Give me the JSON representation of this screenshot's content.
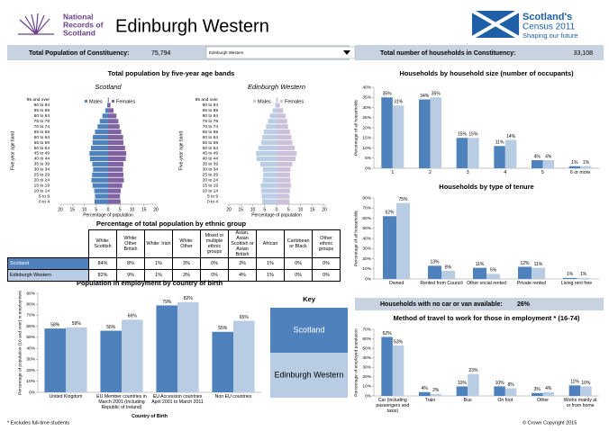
{
  "header": {
    "logo": [
      "National",
      "Records of",
      "Scotland"
    ],
    "title": "Edinburgh Western",
    "census": [
      "Scotland's",
      "Census 2011"
    ],
    "tagline": "Shaping our future"
  },
  "stats": {
    "population_label": "Total Population of Constituency:",
    "population": "75,794",
    "selector": "Edinburgh Western",
    "households_label": "Total number of households in Constituency:",
    "households": "33,108"
  },
  "ethnic_table": {
    "title": "Percentage of total population by ethnic group",
    "columns": [
      "White: Scottish",
      "White: Other British",
      "White: Irish",
      "White: Other",
      "Mixed or multiple ethnic groups",
      "Asian, Asian Scottish or Asian British",
      "African",
      "Caribbean or Black",
      "Other ethnic groups"
    ],
    "rows": [
      [
        "Scotland",
        "84%",
        "8%",
        "1%",
        "3%",
        "0%",
        "3%",
        "1%",
        "0%",
        "0%"
      ],
      [
        "Edinburgh Western",
        "82%",
        "9%",
        "1%",
        "3%",
        "0%",
        "4%",
        "1%",
        "0%",
        "0%"
      ]
    ]
  },
  "key": {
    "title": "Key",
    "items": [
      {
        "name": "Scotland",
        "color": "#4f81bd"
      },
      {
        "name": "Edinburgh Western",
        "color": "#b8cce4"
      }
    ]
  },
  "no_car": {
    "label": "Households with no car or van available:",
    "value": "26%"
  },
  "footer": {
    "note": "* Excludes full-time students",
    "copyright": "© Crown Copyright 2015"
  },
  "chart_data": [
    {
      "type": "pyramid",
      "title": "Total population by five-year age bands",
      "categories": [
        "95 and over",
        "90 to 94",
        "85 to 89",
        "80 to 84",
        "75 to 79",
        "70 to 74",
        "65 to 69",
        "60 to 64",
        "55 to 59",
        "50 to 54",
        "45 to 49",
        "40 to 44",
        "35 to 39",
        "30 to 34",
        "25 to 29",
        "20 to 24",
        "15 to 19",
        "10 to 14",
        "5 to 9",
        "0 to 4"
      ],
      "xlim": [
        0,
        20
      ],
      "xticks": [
        0,
        5,
        10,
        15,
        20
      ],
      "xlabel": "Percentage of population",
      "ylabel": "Five-year age band",
      "panels": [
        {
          "subtitle": "Scotland",
          "series": [
            {
              "name": "Males",
              "color": "#4f81bd",
              "values": [
                0.1,
                0.4,
                1.2,
                2.4,
                3.5,
                4.4,
                5.5,
                6.4,
                6.5,
                7.2,
                7.8,
                7.6,
                6.6,
                6.3,
                6.7,
                7.0,
                6.5,
                5.8,
                5.5,
                5.7
              ]
            },
            {
              "name": "Females",
              "color": "#8064a2",
              "values": [
                0.3,
                1.0,
                2.3,
                3.5,
                4.3,
                4.8,
                5.5,
                6.3,
                6.4,
                7.1,
                7.6,
                7.4,
                6.4,
                6.2,
                6.4,
                6.6,
                5.9,
                5.3,
                5.0,
                5.2
              ]
            }
          ]
        },
        {
          "subtitle": "Edinburgh Western",
          "series": [
            {
              "name": "Males",
              "color": "#b9cde5",
              "values": [
                0.2,
                0.6,
                1.6,
                2.8,
                3.6,
                4.4,
                5.4,
                6.0,
                6.4,
                7.6,
                8.6,
                8.4,
                6.8,
                5.8,
                5.6,
                5.8,
                6.6,
                6.4,
                6.2,
                6.0
              ]
            },
            {
              "name": "Females",
              "color": "#ccc1da",
              "values": [
                0.5,
                1.4,
                2.8,
                3.8,
                4.4,
                4.8,
                5.6,
                6.2,
                6.6,
                7.6,
                8.4,
                8.0,
                6.6,
                5.8,
                5.6,
                5.8,
                6.0,
                5.6,
                5.4,
                5.4
              ]
            }
          ]
        }
      ]
    },
    {
      "type": "bar",
      "title": "Households by household size (number of occupants)",
      "categories": [
        "1",
        "2",
        "3",
        "4",
        "5",
        "6 or more"
      ],
      "ylabel": "Percentage of all households",
      "ylim": [
        0,
        40
      ],
      "yticks": [
        {
          "value": 0,
          "label": "0%"
        },
        {
          "value": 5,
          "label": "5%"
        },
        {
          "value": 10,
          "label": "10%"
        },
        {
          "value": 15,
          "label": "15%"
        },
        {
          "value": 20,
          "label": "20%"
        },
        {
          "value": 25,
          "label": "25%"
        },
        {
          "value": 30,
          "label": "30%"
        },
        {
          "value": 35,
          "label": "35%"
        },
        {
          "value": 40,
          "label": "40%"
        }
      ],
      "series": [
        {
          "color": "#4f81bd",
          "values": [
            35,
            34,
            15,
            11,
            4,
            1
          ],
          "value_labels": [
            "35%",
            "34%",
            "15%",
            "11%",
            "4%",
            "1%"
          ]
        },
        {
          "color": "#b8cce4",
          "values": [
            31,
            35,
            15,
            14,
            4,
            1
          ],
          "value_labels": [
            "31%",
            "35%",
            "15%",
            "14%",
            "4%",
            "1%"
          ]
        }
      ]
    },
    {
      "type": "bar",
      "title": "Households by type of tenure",
      "categories": [
        "Owned",
        "Rented from Council",
        "Other social rented",
        "Private rented",
        "Living rent free"
      ],
      "ylabel": "Percentage of all households",
      "ylim": [
        0,
        80
      ],
      "yticks": [
        {
          "value": 0,
          "label": "0%"
        },
        {
          "value": 10,
          "label": "10%"
        },
        {
          "value": 20,
          "label": "20%"
        },
        {
          "value": 30,
          "label": "30%"
        },
        {
          "value": 40,
          "label": "40%"
        },
        {
          "value": 50,
          "label": "50%"
        },
        {
          "value": 60,
          "label": "60%"
        },
        {
          "value": 70,
          "label": "70%"
        },
        {
          "value": 80,
          "label": "80%"
        }
      ],
      "series": [
        {
          "color": "#4f81bd",
          "values": [
            62,
            13,
            11,
            12,
            1
          ],
          "value_labels": [
            "62%",
            "13%",
            "11%",
            "12%",
            "1%"
          ]
        },
        {
          "color": "#b8cce4",
          "values": [
            75,
            8,
            5,
            11,
            1
          ],
          "value_labels": [
            "75%",
            "8%",
            "5%",
            "11%",
            "1%"
          ]
        }
      ]
    },
    {
      "type": "bar",
      "title": "Population in employment by country of birth",
      "categories": [
        "United Kingdom",
        "EU Member countries in March 2001 (Including Republic of Ireland)",
        "EU Accession countries April 2001 to March 2011",
        "Non EU countries"
      ],
      "xlabel": "Country of Birth",
      "ylabel": "Percentage of population (16 and over) in employment",
      "ylim": [
        0,
        90
      ],
      "yticks": [
        {
          "value": 0,
          "label": "0%"
        },
        {
          "value": 10,
          "label": "10%"
        },
        {
          "value": 20,
          "label": "20%"
        },
        {
          "value": 30,
          "label": "30%"
        },
        {
          "value": 40,
          "label": "40%"
        },
        {
          "value": 50,
          "label": "50%"
        },
        {
          "value": 60,
          "label": "60%"
        },
        {
          "value": 70,
          "label": "70%"
        },
        {
          "value": 80,
          "label": "80%"
        },
        {
          "value": 90,
          "label": "90%"
        }
      ],
      "series": [
        {
          "color": "#4f81bd",
          "values": [
            58,
            56,
            79,
            55
          ],
          "value_labels": [
            "58%",
            "56%",
            "79%",
            "55%"
          ]
        },
        {
          "color": "#b8cce4",
          "values": [
            59,
            66,
            82,
            65
          ],
          "value_labels": [
            "59%",
            "66%",
            "82%",
            "65%"
          ]
        }
      ]
    },
    {
      "type": "bar",
      "title": "Method of travel to work for those in employment * (16-74)",
      "categories": [
        "Car (including passengers and taxis)",
        "Train",
        "Bus",
        "On foot",
        "Other",
        "Works mainly at or from home"
      ],
      "ylabel": "Percentage of employed population",
      "ylim": [
        0,
        70
      ],
      "yticks": [
        {
          "value": 0,
          "label": "0%"
        },
        {
          "value": 10,
          "label": "10%"
        },
        {
          "value": 20,
          "label": "20%"
        },
        {
          "value": 30,
          "label": "30%"
        },
        {
          "value": 40,
          "label": "40%"
        },
        {
          "value": 50,
          "label": "50%"
        },
        {
          "value": 60,
          "label": "60%"
        },
        {
          "value": 70,
          "label": "70%"
        }
      ],
      "series": [
        {
          "color": "#4f81bd",
          "values": [
            62,
            4,
            10,
            10,
            3,
            11
          ],
          "value_labels": [
            "62%",
            "4%",
            "10%",
            "10%",
            "3%",
            "11%"
          ]
        },
        {
          "color": "#b8cce4",
          "values": [
            53,
            2,
            23,
            8,
            4,
            10
          ],
          "value_labels": [
            "53%",
            "2%",
            "23%",
            "8%",
            "4%",
            "10%"
          ]
        }
      ]
    }
  ]
}
